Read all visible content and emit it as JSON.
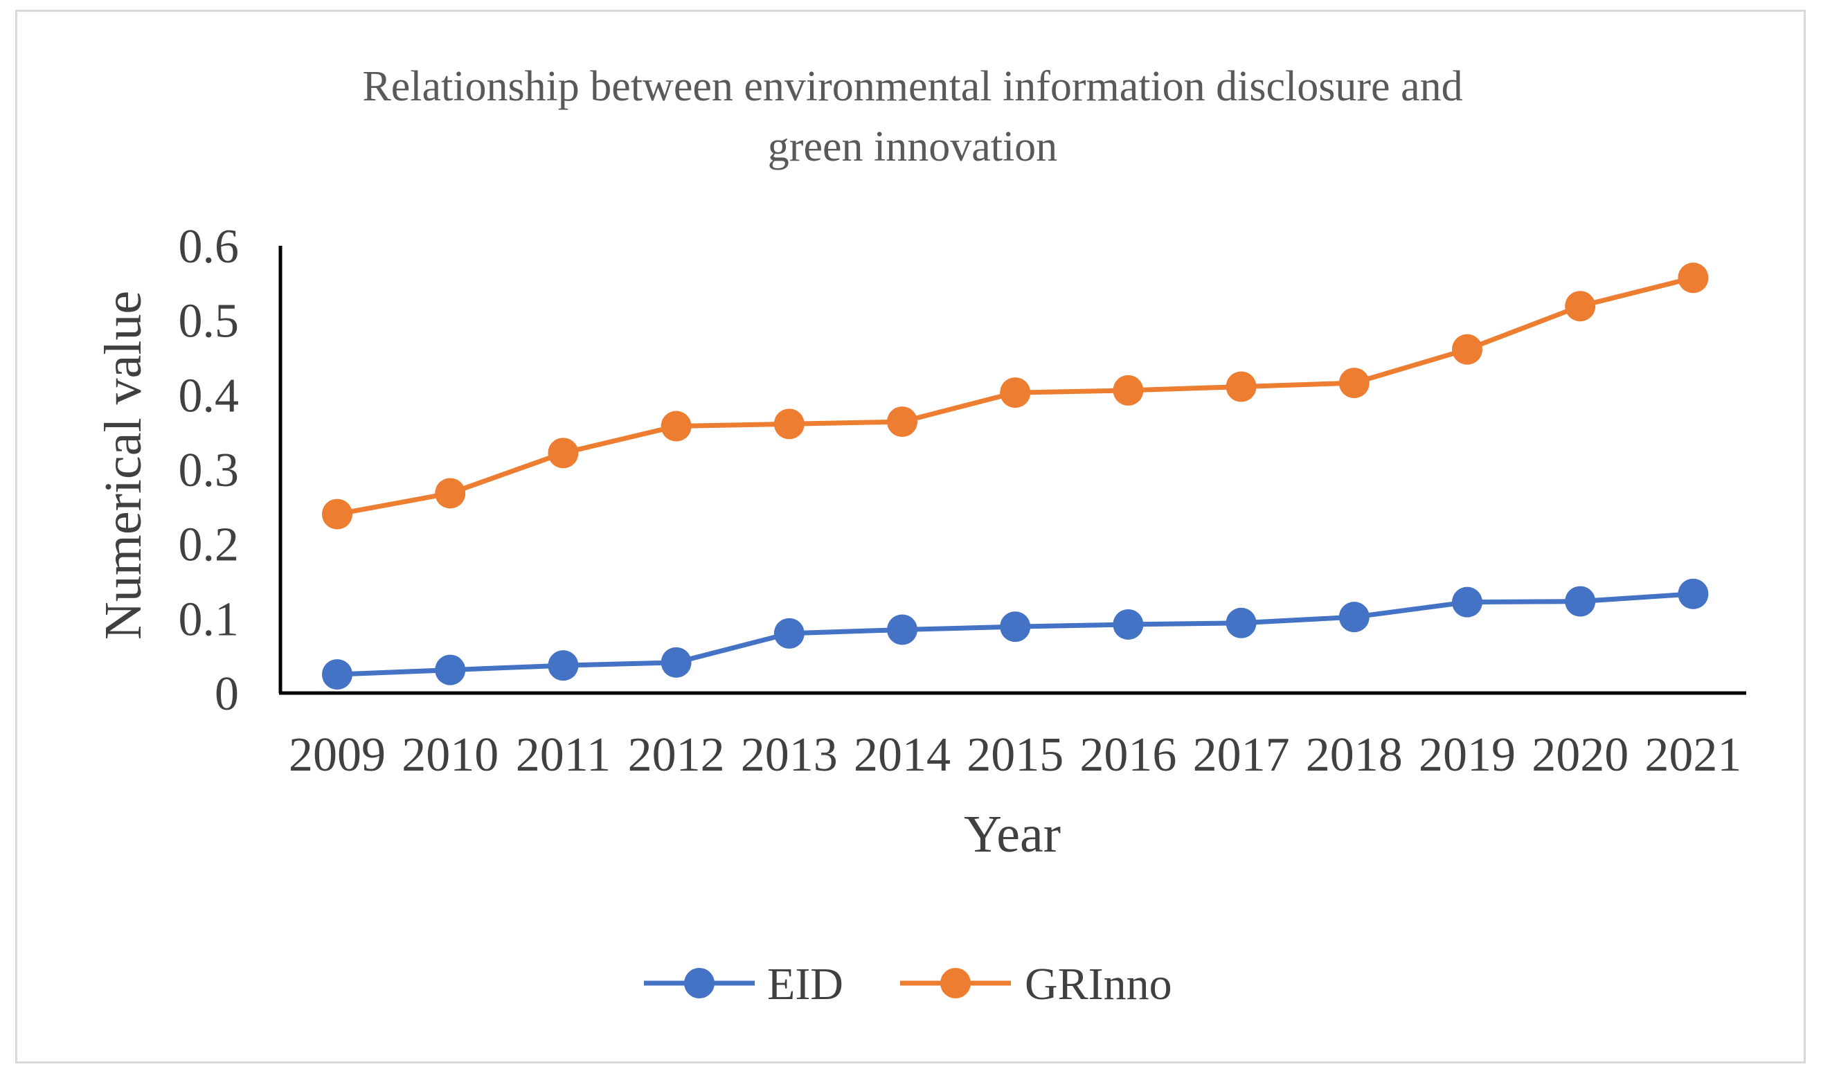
{
  "chart_data": {
    "type": "line",
    "title_lines": [
      "Relationship between environmental information disclosure and",
      "green innovation"
    ],
    "xlabel": "Year",
    "ylabel": "Numerical value",
    "categories": [
      "2009",
      "2010",
      "2011",
      "2012",
      "2013",
      "2014",
      "2015",
      "2016",
      "2017",
      "2018",
      "2019",
      "2020",
      "2021"
    ],
    "ylim": [
      0,
      0.6
    ],
    "yticks": [
      "0",
      "0.1",
      "0.2",
      "0.3",
      "0.4",
      "0.5",
      "0.6"
    ],
    "grid": false,
    "legend_position": "bottom",
    "series": [
      {
        "name": "EID",
        "color": "#4472c4",
        "values": [
          0.025,
          0.031,
          0.037,
          0.041,
          0.08,
          0.085,
          0.089,
          0.092,
          0.094,
          0.102,
          0.122,
          0.123,
          0.133
        ]
      },
      {
        "name": "GRInno",
        "color": "#ed7d31",
        "values": [
          0.24,
          0.268,
          0.322,
          0.358,
          0.361,
          0.364,
          0.403,
          0.406,
          0.411,
          0.416,
          0.461,
          0.519,
          0.557
        ]
      }
    ]
  }
}
